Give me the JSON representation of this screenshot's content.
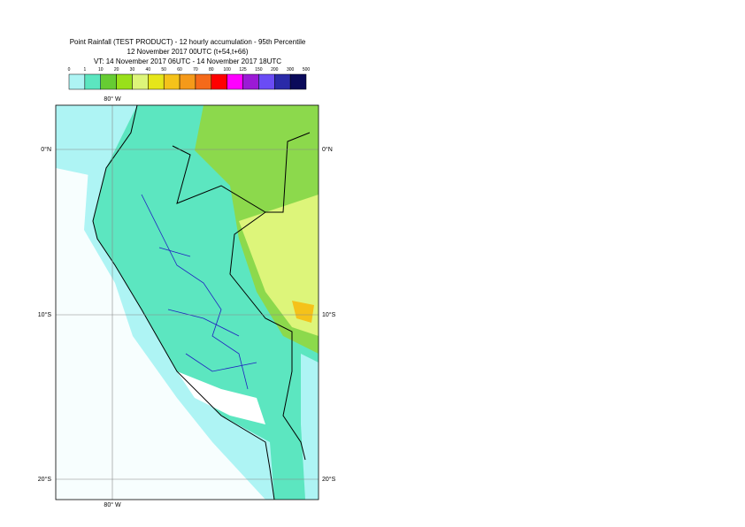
{
  "header": {
    "title": "Point Rainfall (TEST PRODUCT) - 12 hourly accumulation - 95th Percentile",
    "subtitle": "12 November 2017 00UTC (t+54,t+66)",
    "validity": "VT: 14 November 2017 06UTC - 14 November 2017 18UTC"
  },
  "legend": {
    "labels": [
      0,
      1,
      10,
      20,
      30,
      40,
      50,
      60,
      70,
      80,
      100,
      125,
      150,
      200,
      300,
      500
    ],
    "colors": [
      "#ffffff",
      "#aef4f4",
      "#5ce6c0",
      "#66cc33",
      "#99e01a",
      "#ddf57a",
      "#e6e61a",
      "#f5c21a",
      "#f59a1a",
      "#f56a1a",
      "#ff0000",
      "#ff00ff",
      "#9b1ad6",
      "#6a4cf5",
      "#2a2aa8",
      "#0a0a5a"
    ]
  },
  "map": {
    "lon_label": "80° W",
    "lat_labels": [
      "0°N",
      "10°S",
      "20°S"
    ]
  }
}
